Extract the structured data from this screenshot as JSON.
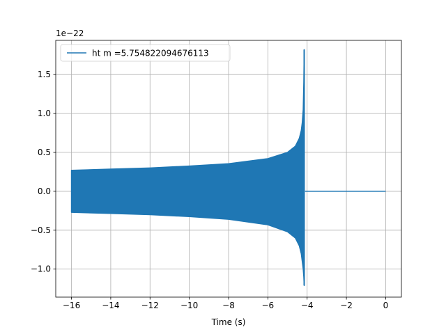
{
  "chart_data": {
    "type": "line",
    "title": "",
    "xlabel": "Time (s)",
    "ylabel": "",
    "offset_label": "1e−22",
    "xlim": [
      -16.8,
      0.8
    ],
    "ylim": [
      -1.36,
      1.94
    ],
    "x_ticks": [
      -16,
      -14,
      -12,
      -10,
      -8,
      -6,
      -4,
      -2,
      0
    ],
    "x_tick_labels": [
      "−16",
      "−14",
      "−12",
      "−10",
      "−8",
      "−6",
      "−4",
      "−2",
      "0"
    ],
    "y_ticks": [
      -1.0,
      -0.5,
      0.0,
      0.5,
      1.0,
      1.5
    ],
    "y_tick_labels": [
      "−1.0",
      "−0.5",
      "0.0",
      "0.5",
      "1.0",
      "1.5"
    ],
    "grid": true,
    "legend_position": "upper left",
    "series": [
      {
        "name": "ht m =5.754822094676113",
        "color": "#1f77b4",
        "description_of_shape": "chirp",
        "upper_envelope": {
          "x": [
            -16.0,
            -14.0,
            -12.0,
            -10.0,
            -8.0,
            -6.0,
            -5.0,
            -4.6,
            -4.4,
            -4.3,
            -4.25,
            -4.2,
            -4.17,
            -4.15
          ],
          "y": [
            0.27,
            0.285,
            0.3,
            0.325,
            0.355,
            0.42,
            0.5,
            0.58,
            0.68,
            0.78,
            0.88,
            1.05,
            1.4,
            1.82
          ]
        },
        "lower_envelope": {
          "x": [
            -16.0,
            -14.0,
            -12.0,
            -10.0,
            -8.0,
            -6.0,
            -5.0,
            -4.6,
            -4.4,
            -4.3,
            -4.25,
            -4.2,
            -4.17,
            -4.15
          ],
          "y": [
            -0.27,
            -0.285,
            -0.3,
            -0.325,
            -0.36,
            -0.43,
            -0.52,
            -0.6,
            -0.7,
            -0.8,
            -0.9,
            -1.0,
            -1.1,
            -1.21
          ]
        },
        "post_merger": {
          "x": [
            -4.1,
            0.0
          ],
          "y": [
            0.0,
            0.0
          ]
        }
      }
    ]
  }
}
